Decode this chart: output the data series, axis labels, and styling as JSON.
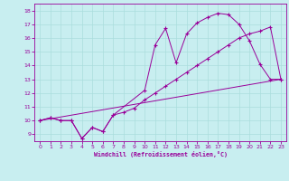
{
  "xlabel": "Windchill (Refroidissement éolien,°C)",
  "bg_color": "#c8eef0",
  "line_color": "#990099",
  "xlim": [
    -0.5,
    23.5
  ],
  "ylim": [
    8.5,
    18.5
  ],
  "xticks": [
    0,
    1,
    2,
    3,
    4,
    5,
    6,
    7,
    8,
    9,
    10,
    11,
    12,
    13,
    14,
    15,
    16,
    17,
    18,
    19,
    20,
    21,
    22,
    23
  ],
  "yticks": [
    9,
    10,
    11,
    12,
    13,
    14,
    15,
    16,
    17,
    18
  ],
  "grid_color": "#aadddd",
  "line1_x": [
    0,
    1,
    2,
    3,
    4,
    5,
    6,
    7,
    10,
    11,
    12,
    13,
    14,
    15,
    16,
    17,
    18,
    19,
    20,
    21,
    22,
    23
  ],
  "line1_y": [
    10.0,
    10.2,
    10.0,
    10.0,
    8.7,
    9.5,
    9.2,
    10.4,
    12.2,
    15.5,
    16.7,
    14.2,
    16.3,
    17.1,
    17.5,
    17.8,
    17.7,
    17.0,
    15.8,
    14.1,
    13.0,
    13.0
  ],
  "line2_x": [
    0,
    1,
    2,
    3,
    4,
    5,
    6,
    7,
    8,
    9,
    10,
    11,
    12,
    13,
    14,
    15,
    16,
    17,
    18,
    19,
    20,
    21,
    22,
    23
  ],
  "line2_y": [
    10.0,
    10.2,
    10.0,
    10.0,
    8.7,
    9.5,
    9.2,
    10.4,
    10.6,
    10.9,
    11.5,
    12.0,
    12.5,
    13.0,
    13.5,
    14.0,
    14.5,
    15.0,
    15.5,
    16.0,
    16.3,
    16.5,
    16.8,
    13.0
  ],
  "line3_x": [
    0,
    23
  ],
  "line3_y": [
    10.0,
    13.0
  ]
}
